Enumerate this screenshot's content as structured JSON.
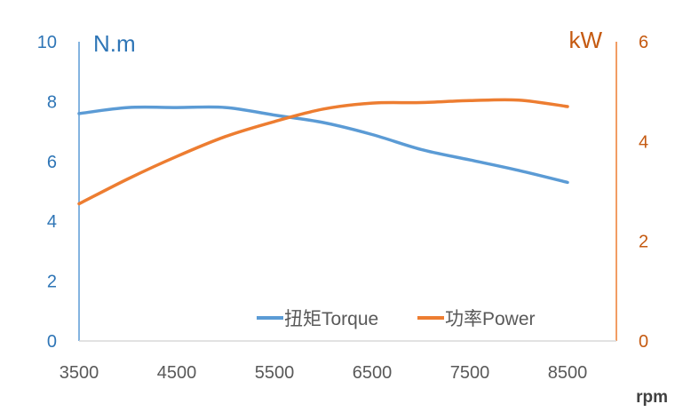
{
  "chart_data": {
    "type": "line",
    "x": [
      3500,
      4000,
      4500,
      5000,
      5500,
      6000,
      6500,
      7000,
      7500,
      8000,
      8500
    ],
    "x_ticks": [
      "3500",
      "4500",
      "5500",
      "6500",
      "7500",
      "8500"
    ],
    "xlim": [
      3500,
      9000
    ],
    "xlabel": "rpm",
    "y_left": {
      "unit": "N.m",
      "ylim": [
        0,
        10
      ],
      "ticks": [
        "0",
        "2",
        "4",
        "6",
        "8",
        "10"
      ],
      "color": "#2e75b6"
    },
    "y_right": {
      "unit": "kW",
      "ylim": [
        0,
        6
      ],
      "ticks": [
        "0",
        "2",
        "4",
        "6"
      ],
      "color": "#c55a11"
    },
    "series": [
      {
        "name": "扭矩Torque",
        "axis": "left",
        "color": "#5b9bd5",
        "values": [
          7.6,
          7.8,
          7.8,
          7.8,
          7.55,
          7.3,
          6.9,
          6.4,
          6.05,
          5.7,
          5.3
        ]
      },
      {
        "name": "功率Power",
        "axis": "right",
        "color": "#ed7d31",
        "values": [
          2.75,
          3.25,
          3.7,
          4.1,
          4.4,
          4.65,
          4.77,
          4.78,
          4.82,
          4.83,
          4.7
        ]
      }
    ],
    "grid": false,
    "legend": "bottom-right"
  }
}
